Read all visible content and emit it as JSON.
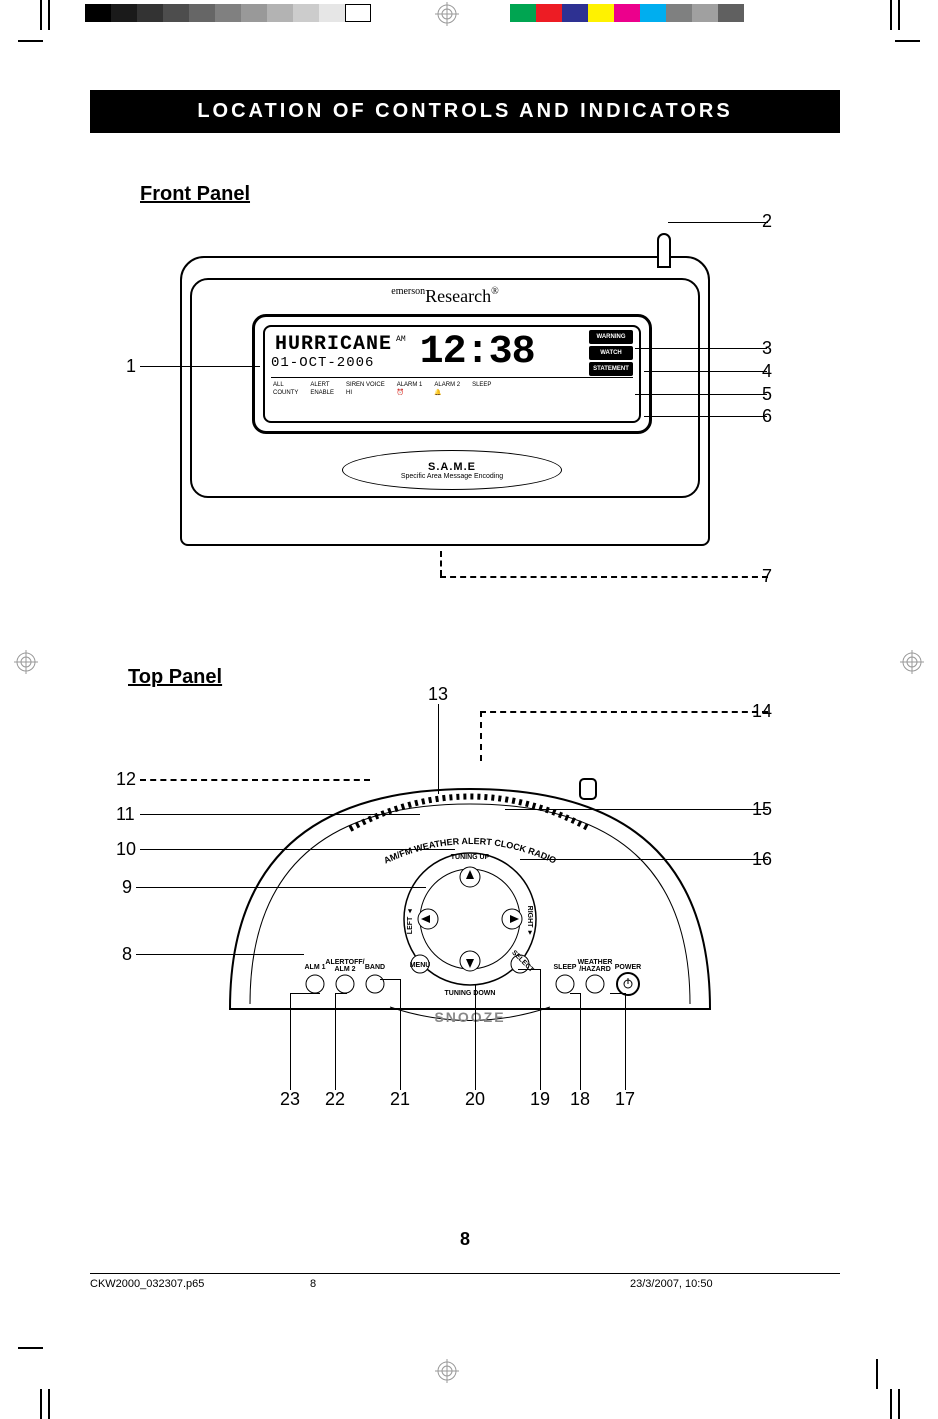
{
  "registration": {
    "gray_swatches": [
      "#000000",
      "#1a1a1a",
      "#333333",
      "#4d4d4d",
      "#666666",
      "#808080",
      "#999999",
      "#b3b3b3",
      "#cccccc",
      "#e6e6e6",
      "#ffffff"
    ],
    "color_swatches": [
      "#00a551",
      "#ed1c24",
      "#2e3192",
      "#fff200",
      "#ec008c",
      "#00aeef",
      "#7f8080",
      "#a0a0a0",
      "#606060"
    ]
  },
  "page": {
    "title": "LOCATION OF CONTROLS AND INDICATORS",
    "section_front": "Front Panel",
    "section_top": "Top Panel",
    "page_number": "8",
    "footer_file": "CKW2000_032307.p65",
    "footer_page": "8",
    "footer_datetime": "23/3/2007, 10:50"
  },
  "device": {
    "brand_prefix": "emerson",
    "brand": "Research",
    "lcd": {
      "message": "HURRICANE",
      "date": "01-OCT-2006",
      "ampm": "AM",
      "time": "12:38",
      "badges": [
        "WARNING",
        "WATCH",
        "STATEMENT"
      ],
      "bottom_labels": {
        "col1a": "ALL",
        "col1b": "COUNTY",
        "col2a": "ALERT",
        "col2b": "ENABLE",
        "col3": "SIREN VOICE",
        "col3b": "HI",
        "col4": "ALARM 1",
        "col5": "ALARM 2",
        "col6": "SLEEP"
      }
    },
    "same_title": "S.A.M.E",
    "same_sub": "Specific Area Message Encoding"
  },
  "front_callouts": [
    "1",
    "2",
    "3",
    "4",
    "5",
    "6",
    "7"
  ],
  "top_callouts": {
    "left": [
      "12",
      "11",
      "10",
      "9",
      "8"
    ],
    "top": [
      "13",
      "14"
    ],
    "right": [
      "15",
      "16"
    ],
    "bottom": [
      "23",
      "22",
      "21",
      "20",
      "19",
      "18",
      "17"
    ]
  },
  "top_panel_labels": {
    "arc": "AM/FM WEATHER ALERT CLOCK RADIO",
    "tuning_up": "TUNING UP",
    "tuning_down": "TUNING DOWN",
    "left": "LEFT",
    "right": "RIGHT",
    "menu": "MENU",
    "select": "SELECT",
    "alm1": "ALM 1",
    "alertoff": "ALERTOFF/\nALM 2",
    "band": "BAND",
    "sleep": "SLEEP",
    "weather": "WEATHER\n/HAZARD",
    "power": "POWER",
    "snooze": "SNOOZE"
  }
}
